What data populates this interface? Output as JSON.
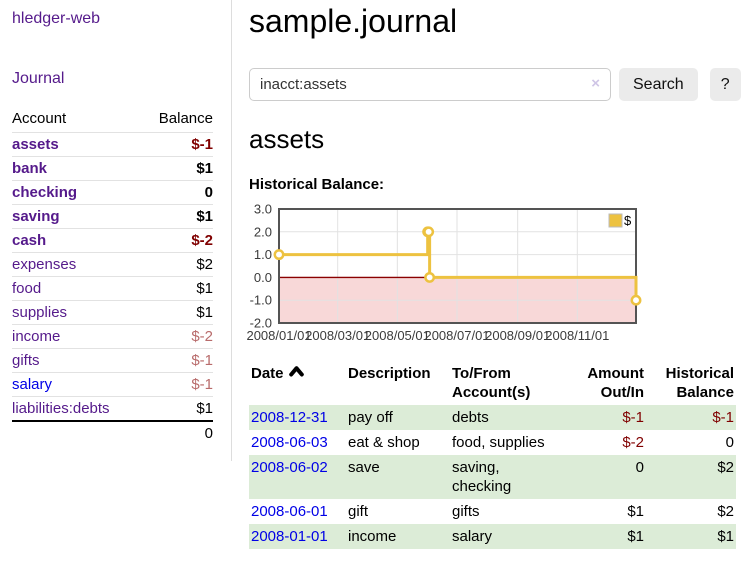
{
  "sidebar": {
    "brand": "hledger-web",
    "journal_link": "Journal",
    "accounts_table": {
      "headers": {
        "account": "Account",
        "balance": "Balance"
      },
      "rows": [
        {
          "name": "assets",
          "level": 1,
          "emphasis": true,
          "balance": "$-1",
          "balance_tone": "neg"
        },
        {
          "name": "bank",
          "level": 2,
          "emphasis": true,
          "balance": "$1",
          "balance_tone": ""
        },
        {
          "name": "checking",
          "level": 3,
          "emphasis": true,
          "balance": "0",
          "balance_tone": ""
        },
        {
          "name": "saving",
          "level": 3,
          "emphasis": true,
          "balance": "$1",
          "balance_tone": ""
        },
        {
          "name": "cash",
          "level": 2,
          "emphasis": true,
          "balance": "$-2",
          "balance_tone": "neg"
        },
        {
          "name": "expenses",
          "level": 1,
          "emphasis": false,
          "balance": "$2",
          "balance_tone": ""
        },
        {
          "name": "food",
          "level": 2,
          "emphasis": false,
          "balance": "$1",
          "balance_tone": ""
        },
        {
          "name": "supplies",
          "level": 2,
          "emphasis": false,
          "balance": "$1",
          "balance_tone": ""
        },
        {
          "name": "income",
          "level": 1,
          "emphasis": false,
          "balance": "$-2",
          "balance_tone": "neg-dim"
        },
        {
          "name": "gifts",
          "level": 2,
          "emphasis": false,
          "balance": "$-1",
          "balance_tone": "neg-dim"
        },
        {
          "name": "salary",
          "level": 2,
          "emphasis": false,
          "balance": "$-1",
          "balance_tone": "neg-dim",
          "link_color": "blue"
        },
        {
          "name": "liabilities:debts",
          "level": 1,
          "emphasis": false,
          "balance": "$1",
          "balance_tone": ""
        }
      ],
      "total": "0"
    }
  },
  "main": {
    "title": "sample.journal",
    "search": {
      "value": "inacct:assets",
      "clear_glyph": "×",
      "button_label": "Search",
      "help_label": "?"
    },
    "account_heading": "assets",
    "chart_title": "Historical Balance:"
  },
  "chart_data": {
    "type": "line",
    "step": true,
    "title": "Historical Balance",
    "series": [
      {
        "name": "$",
        "color": "#edc240",
        "points": [
          [
            "2008-01-01",
            1
          ],
          [
            "2008-06-01",
            2
          ],
          [
            "2008-06-02",
            2
          ],
          [
            "2008-06-03",
            0
          ],
          [
            "2008-12-31",
            -1
          ]
        ]
      }
    ],
    "xlim": [
      "2008-01-01",
      "2008-12-31"
    ],
    "ylim": [
      -2,
      3
    ],
    "yticks": [
      3.0,
      2.0,
      1.0,
      0.0,
      -1.0,
      -2.0
    ],
    "xticks": [
      {
        "d": "2008-01-01",
        "label": "2008/01/01"
      },
      {
        "d": "2008-03-01",
        "label": "2008/03/01"
      },
      {
        "d": "2008-05-01",
        "label": "2008/05/01"
      },
      {
        "d": "2008-07-01",
        "label": "2008/07/01"
      },
      {
        "d": "2008-09-01",
        "label": "2008/09/01"
      },
      {
        "d": "2008-11-01",
        "label": "2008/11/01"
      }
    ],
    "grid": true,
    "legend": {
      "label": "$",
      "position": "top-right"
    },
    "negative_region_color": "#f8d8d8",
    "zero_line_color": "#8b0000",
    "border_color": "#545454",
    "grid_color": "#e2e2e2",
    "tick_text_color": "#3b3b3b"
  },
  "register_table": {
    "columns": [
      {
        "id": "date",
        "line1": "Date",
        "line2": "",
        "align": "left",
        "sorted": true
      },
      {
        "id": "description",
        "line1": "Description",
        "line2": "",
        "align": "left",
        "sorted": false
      },
      {
        "id": "accounts",
        "line1": "To/From",
        "line2": "Account(s)",
        "align": "left",
        "sorted": false
      },
      {
        "id": "amount",
        "line1": "Amount",
        "line2": "Out/In",
        "align": "right",
        "sorted": false
      },
      {
        "id": "balance",
        "line1": "Historical",
        "line2": "Balance",
        "align": "right",
        "sorted": false
      }
    ],
    "rows": [
      {
        "date": "2008-12-31",
        "description": "pay off",
        "accounts": "debts",
        "amount": "$-1",
        "balance": "$-1",
        "shaded": true
      },
      {
        "date": "2008-06-03",
        "description": "eat & shop",
        "accounts": "food, supplies",
        "amount": "$-2",
        "balance": "0",
        "shaded": false
      },
      {
        "date": "2008-06-02",
        "description": "save",
        "accounts": "saving,\nchecking",
        "amount": "0",
        "balance": "$2",
        "shaded": true
      },
      {
        "date": "2008-06-01",
        "description": "gift",
        "accounts": "gifts",
        "amount": "$1",
        "balance": "$2",
        "shaded": false
      },
      {
        "date": "2008-01-01",
        "description": "income",
        "accounts": "salary",
        "amount": "$1",
        "balance": "$1",
        "shaded": true
      }
    ]
  }
}
